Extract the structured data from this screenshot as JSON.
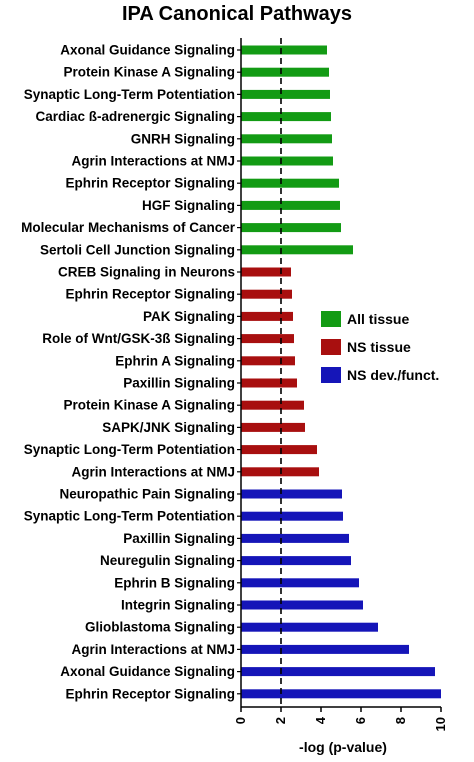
{
  "chart_data": {
    "type": "bar",
    "orientation": "horizontal",
    "title": "IPA Canonical Pathways",
    "xlabel": "-log (p-value)",
    "xlim": [
      0,
      10
    ],
    "xticks": [
      "0",
      "2",
      "4",
      "6",
      "8",
      "10"
    ],
    "threshold": 2,
    "legend_position": "right",
    "series": [
      {
        "name": "All tissue",
        "color": "#139b14",
        "categories": [
          "Axonal Guidance Signaling",
          "Protein Kinase A Signaling",
          "Synaptic Long-Term Potentiation",
          "Cardiac ß-adrenergic Signaling",
          "GNRH Signaling",
          "Agrin Interactions at NMJ",
          "Ephrin Receptor Signaling",
          "HGF Signaling",
          "Molecular Mechanisms of Cancer",
          "Sertoli Cell Junction Signaling"
        ],
        "values": [
          4.3,
          4.4,
          4.45,
          4.5,
          4.55,
          4.6,
          4.9,
          4.95,
          5.0,
          5.6
        ]
      },
      {
        "name": "NS tissue",
        "color": "#a80f0f",
        "categories": [
          "CREB Signaling in Neurons",
          "Ephrin Receptor Signaling",
          "PAK Signaling",
          "Role of Wnt/GSK-3ß Signaling",
          "Ephrin A Signaling",
          "Paxillin Signaling",
          "Protein Kinase A Signaling",
          "SAPK/JNK Signaling",
          "Synaptic Long-Term Potentiation",
          "Agrin Interactions at NMJ"
        ],
        "values": [
          2.5,
          2.55,
          2.6,
          2.65,
          2.7,
          2.8,
          3.15,
          3.2,
          3.8,
          3.9
        ]
      },
      {
        "name": "NS dev./funct.",
        "color": "#1515b8",
        "categories": [
          "Neuropathic Pain Signaling",
          "Synaptic Long-Term Potentiation",
          "Paxillin Signaling",
          "Neuregulin Signaling",
          "Ephrin B Signaling",
          "Integrin Signaling",
          "Glioblastoma Signaling",
          "Agrin Interactions at NMJ",
          "Axonal Guidance Signaling",
          "Ephrin Receptor Signaling"
        ],
        "values": [
          5.05,
          5.1,
          5.4,
          5.5,
          5.9,
          6.1,
          6.85,
          8.4,
          9.7,
          10.0
        ]
      }
    ]
  }
}
